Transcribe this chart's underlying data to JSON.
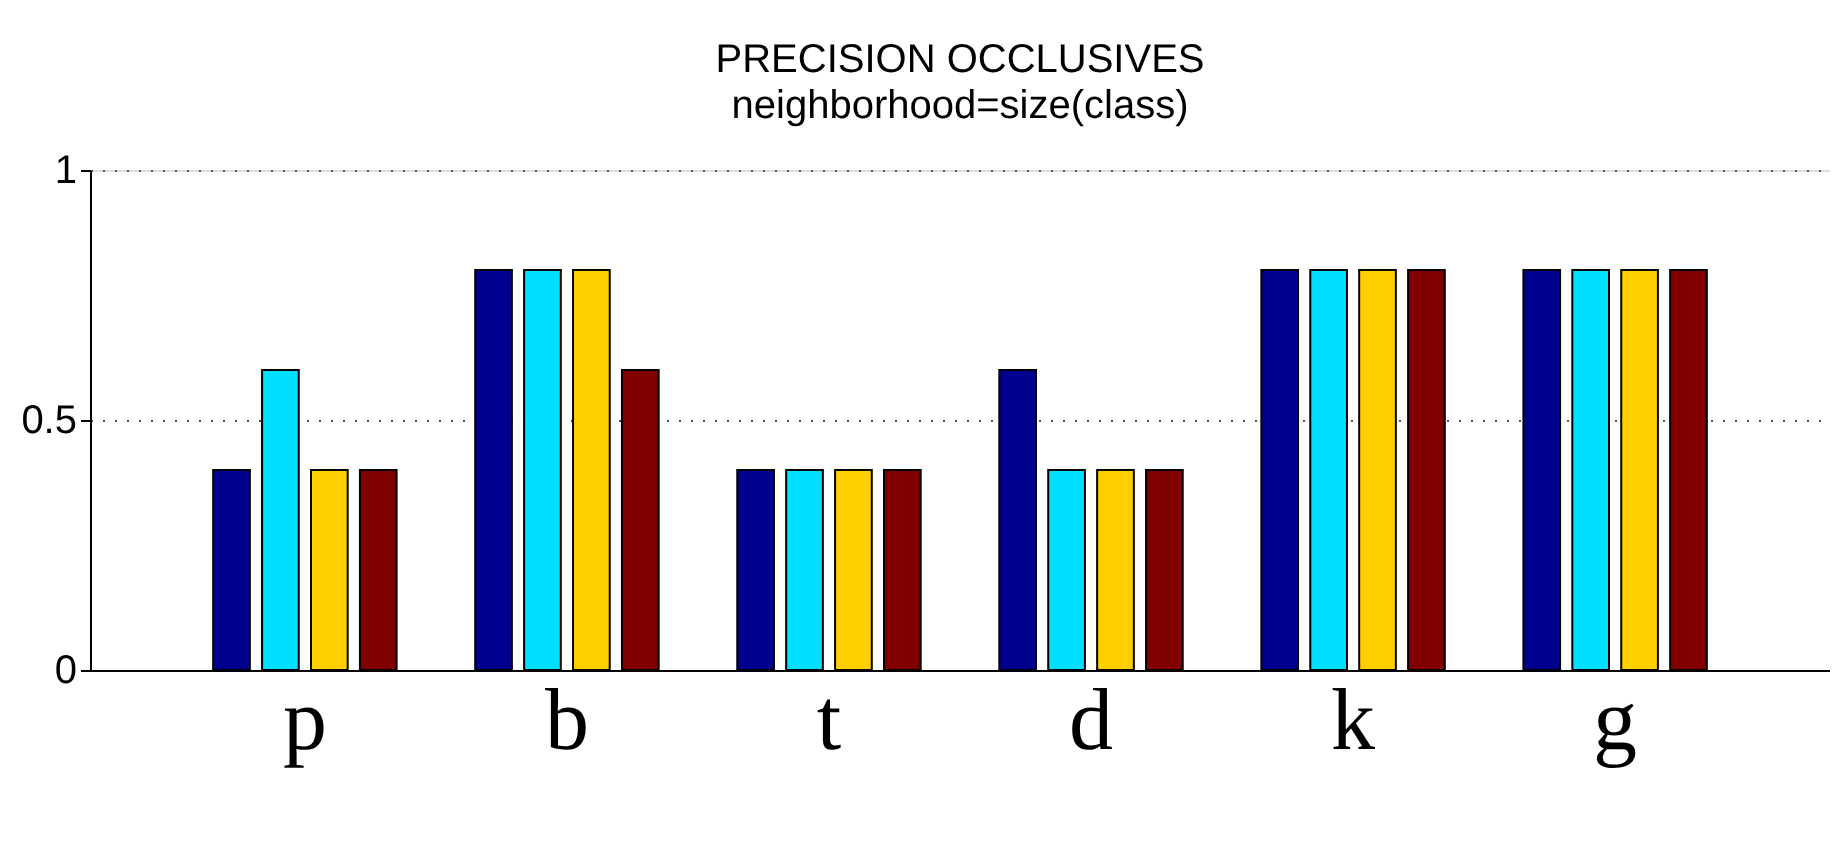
{
  "chart_data": {
    "type": "bar",
    "title": "PRECISION OCCLUSIVES",
    "subtitle": "neighborhood=size(class)",
    "categories": [
      "p",
      "b",
      "t",
      "d",
      "k",
      "g"
    ],
    "series": [
      {
        "color": "#00008f",
        "values": [
          0.4,
          0.8,
          0.4,
          0.6,
          0.8,
          0.8
        ]
      },
      {
        "color": "#00dfff",
        "values": [
          0.6,
          0.8,
          0.4,
          0.4,
          0.8,
          0.8
        ]
      },
      {
        "color": "#ffcf00",
        "values": [
          0.4,
          0.8,
          0.4,
          0.4,
          0.8,
          0.8
        ]
      },
      {
        "color": "#800000",
        "values": [
          0.4,
          0.6,
          0.4,
          0.4,
          0.8,
          0.8
        ]
      }
    ],
    "ylim": [
      0,
      1
    ],
    "yticks": [
      0,
      0.5,
      1
    ],
    "grid": "y",
    "legend": false
  }
}
